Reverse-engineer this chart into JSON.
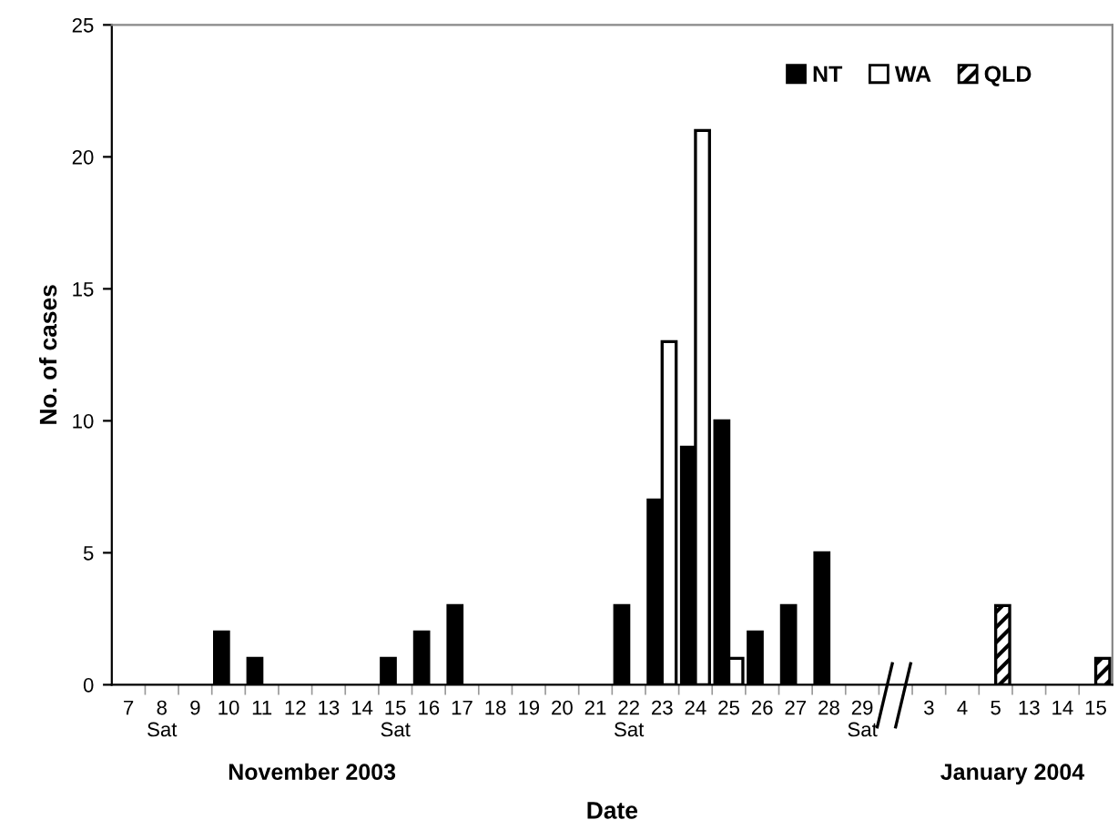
{
  "chart_data": {
    "type": "bar",
    "xlabel": "Date",
    "ylabel": "No. of cases",
    "categories": [
      "7",
      "8\nSat",
      "9",
      "10",
      "11",
      "12",
      "13",
      "14",
      "15\nSat",
      "16",
      "17",
      "18",
      "19",
      "20",
      "21",
      "22\nSat",
      "23",
      "24",
      "25",
      "26",
      "27",
      "28",
      "29\nSat",
      null,
      "3",
      "4",
      "5",
      "13",
      "14",
      "15"
    ],
    "series": [
      {
        "name": "NT",
        "color": "#000000",
        "values": [
          null,
          null,
          null,
          2,
          1,
          null,
          null,
          null,
          1,
          2,
          3,
          null,
          null,
          null,
          null,
          3,
          7,
          9,
          10,
          2,
          3,
          5,
          null,
          null,
          null,
          null,
          null,
          null,
          null,
          null
        ]
      },
      {
        "name": "WA",
        "color": "#ffffff",
        "values": [
          null,
          null,
          null,
          null,
          null,
          null,
          null,
          null,
          null,
          null,
          null,
          null,
          null,
          null,
          null,
          null,
          13,
          21,
          1,
          null,
          null,
          null,
          null,
          null,
          null,
          null,
          null,
          null,
          null,
          null
        ]
      },
      {
        "name": "QLD",
        "color": "#000000",
        "values": [
          null,
          null,
          null,
          null,
          null,
          null,
          null,
          null,
          null,
          null,
          null,
          null,
          null,
          null,
          null,
          null,
          null,
          null,
          null,
          null,
          null,
          null,
          null,
          null,
          null,
          null,
          3,
          null,
          null,
          1
        ]
      }
    ],
    "ylim": [
      0,
      25
    ],
    "yticks": [
      0,
      5,
      10,
      15,
      20,
      25
    ],
    "grid": false,
    "legend": "top right",
    "annotations": [
      "November 2003",
      "January 2004"
    ]
  }
}
